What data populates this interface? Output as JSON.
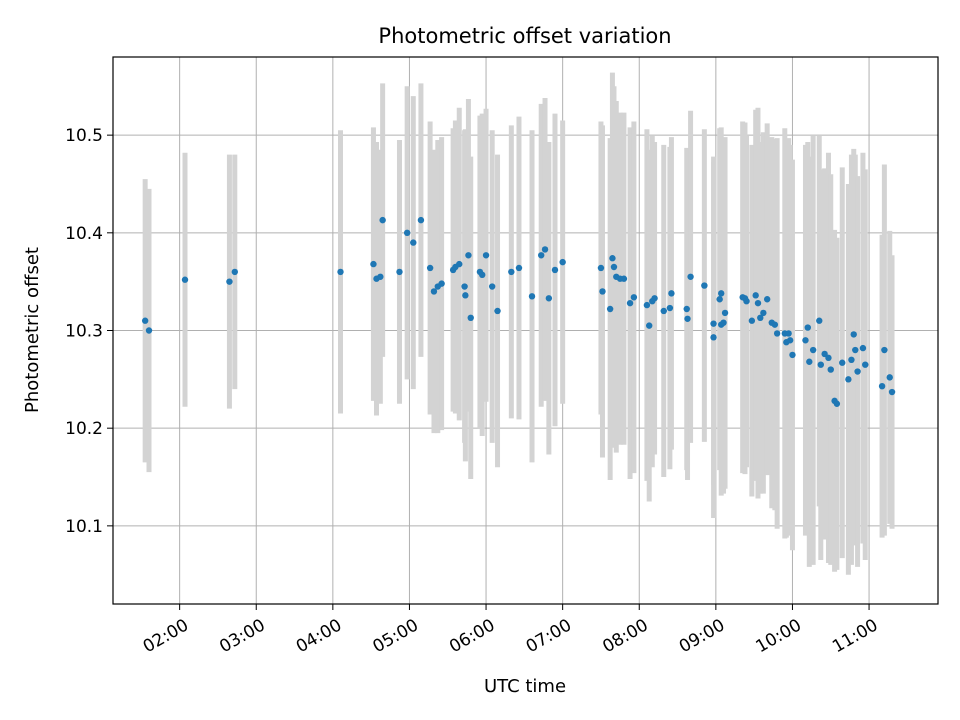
{
  "chart_data": {
    "type": "scatter",
    "title": "Photometric offset variation",
    "xlabel": "UTC time",
    "ylabel": "Photometric offset",
    "grid": true,
    "x_unit": "hours (UTC)",
    "xlim": [
      1.13,
      11.9
    ],
    "ylim": [
      10.02,
      10.58
    ],
    "x_ticks": [
      {
        "value": 2,
        "label": "02:00"
      },
      {
        "value": 3,
        "label": "03:00"
      },
      {
        "value": 4,
        "label": "04:00"
      },
      {
        "value": 5,
        "label": "05:00"
      },
      {
        "value": 6,
        "label": "06:00"
      },
      {
        "value": 7,
        "label": "07:00"
      },
      {
        "value": 8,
        "label": "08:00"
      },
      {
        "value": 9,
        "label": "09:00"
      },
      {
        "value": 10,
        "label": "10:00"
      },
      {
        "value": 11,
        "label": "11:00"
      }
    ],
    "y_ticks": [
      {
        "value": 10.1,
        "label": "10.1"
      },
      {
        "value": 10.2,
        "label": "10.2"
      },
      {
        "value": 10.3,
        "label": "10.3"
      },
      {
        "value": 10.4,
        "label": "10.4"
      },
      {
        "value": 10.5,
        "label": "10.5"
      }
    ],
    "colors": {
      "point": "#1f77b4",
      "errorbar": "#d3d3d3",
      "grid": "#b0b0b0"
    },
    "points": [
      [
        1.55,
        10.31,
        0.145
      ],
      [
        1.6,
        10.3,
        0.145
      ],
      [
        2.07,
        10.352,
        0.13
      ],
      [
        2.65,
        10.35,
        0.13
      ],
      [
        2.72,
        10.36,
        0.12
      ],
      [
        4.1,
        10.36,
        0.145
      ],
      [
        4.53,
        10.368,
        0.14
      ],
      [
        4.57,
        10.353,
        0.14
      ],
      [
        4.62,
        10.355,
        0.13
      ],
      [
        4.65,
        10.413,
        0.14
      ],
      [
        4.87,
        10.36,
        0.135
      ],
      [
        4.97,
        10.4,
        0.15
      ],
      [
        5.05,
        10.39,
        0.15
      ],
      [
        5.15,
        10.413,
        0.14
      ],
      [
        5.27,
        10.364,
        0.15
      ],
      [
        5.32,
        10.34,
        0.145
      ],
      [
        5.37,
        10.345,
        0.15
      ],
      [
        5.42,
        10.348,
        0.15
      ],
      [
        5.57,
        10.362,
        0.145
      ],
      [
        5.6,
        10.365,
        0.15
      ],
      [
        5.65,
        10.368,
        0.16
      ],
      [
        5.72,
        10.345,
        0.16
      ],
      [
        5.73,
        10.336,
        0.17
      ],
      [
        5.77,
        10.377,
        0.16
      ],
      [
        5.8,
        10.313,
        0.165
      ],
      [
        5.92,
        10.36,
        0.16
      ],
      [
        5.95,
        10.357,
        0.165
      ],
      [
        6.0,
        10.377,
        0.15
      ],
      [
        6.08,
        10.345,
        0.16
      ],
      [
        6.15,
        10.32,
        0.16
      ],
      [
        6.33,
        10.36,
        0.15
      ],
      [
        6.43,
        10.364,
        0.155
      ],
      [
        6.6,
        10.335,
        0.17
      ],
      [
        6.72,
        10.377,
        0.155
      ],
      [
        6.77,
        10.383,
        0.155
      ],
      [
        6.82,
        10.333,
        0.16
      ],
      [
        6.9,
        10.362,
        0.16
      ],
      [
        7.0,
        10.37,
        0.145
      ],
      [
        7.5,
        10.364,
        0.15
      ],
      [
        7.52,
        10.34,
        0.17
      ],
      [
        7.62,
        10.322,
        0.175
      ],
      [
        7.65,
        10.374,
        0.19
      ],
      [
        7.67,
        10.365,
        0.185
      ],
      [
        7.7,
        10.355,
        0.18
      ],
      [
        7.75,
        10.353,
        0.17
      ],
      [
        7.8,
        10.353,
        0.17
      ],
      [
        7.88,
        10.328,
        0.18
      ],
      [
        7.93,
        10.334,
        0.18
      ],
      [
        8.1,
        10.326,
        0.18
      ],
      [
        8.13,
        10.305,
        0.18
      ],
      [
        8.17,
        10.33,
        0.17
      ],
      [
        8.2,
        10.333,
        0.16
      ],
      [
        8.32,
        10.32,
        0.17
      ],
      [
        8.4,
        10.323,
        0.165
      ],
      [
        8.42,
        10.338,
        0.16
      ],
      [
        8.62,
        10.322,
        0.165
      ],
      [
        8.63,
        10.312,
        0.165
      ],
      [
        8.67,
        10.355,
        0.17
      ],
      [
        8.85,
        10.346,
        0.16
      ],
      [
        8.97,
        10.307,
        0.165
      ],
      [
        8.97,
        10.293,
        0.185
      ],
      [
        9.05,
        10.332,
        0.175
      ],
      [
        9.07,
        10.338,
        0.17
      ],
      [
        9.07,
        10.306,
        0.175
      ],
      [
        9.1,
        10.308,
        0.175
      ],
      [
        9.12,
        10.318,
        0.18
      ],
      [
        9.35,
        10.334,
        0.18
      ],
      [
        9.38,
        10.333,
        0.18
      ],
      [
        9.4,
        10.33,
        0.17
      ],
      [
        9.47,
        10.31,
        0.18
      ],
      [
        9.52,
        10.336,
        0.19
      ],
      [
        9.55,
        10.328,
        0.2
      ],
      [
        9.58,
        10.313,
        0.18
      ],
      [
        9.62,
        10.318,
        0.185
      ],
      [
        9.67,
        10.332,
        0.18
      ],
      [
        9.73,
        10.308,
        0.19
      ],
      [
        9.77,
        10.306,
        0.19
      ],
      [
        9.8,
        10.297,
        0.2
      ],
      [
        9.9,
        10.297,
        0.21
      ],
      [
        9.92,
        10.288,
        0.2
      ],
      [
        9.95,
        10.297,
        0.2
      ],
      [
        9.97,
        10.29,
        0.2
      ],
      [
        10.0,
        10.275,
        0.2
      ],
      [
        10.17,
        10.29,
        0.2
      ],
      [
        10.2,
        10.303,
        0.19
      ],
      [
        10.22,
        10.268,
        0.21
      ],
      [
        10.27,
        10.28,
        0.22
      ],
      [
        10.35,
        10.31,
        0.19
      ],
      [
        10.37,
        10.265,
        0.2
      ],
      [
        10.42,
        10.276,
        0.19
      ],
      [
        10.47,
        10.272,
        0.21
      ],
      [
        10.5,
        10.26,
        0.2
      ],
      [
        10.55,
        10.228,
        0.175
      ],
      [
        10.58,
        10.225,
        0.17
      ],
      [
        10.65,
        10.267,
        0.2
      ],
      [
        10.73,
        10.25,
        0.2
      ],
      [
        10.77,
        10.27,
        0.21
      ],
      [
        10.8,
        10.296,
        0.19
      ],
      [
        10.82,
        10.28,
        0.2
      ],
      [
        10.85,
        10.258,
        0.2
      ],
      [
        10.92,
        10.282,
        0.2
      ],
      [
        10.95,
        10.265,
        0.2
      ],
      [
        11.17,
        10.243,
        0.155
      ],
      [
        11.2,
        10.28,
        0.19
      ],
      [
        11.27,
        10.252,
        0.15
      ],
      [
        11.3,
        10.237,
        0.14
      ]
    ]
  }
}
